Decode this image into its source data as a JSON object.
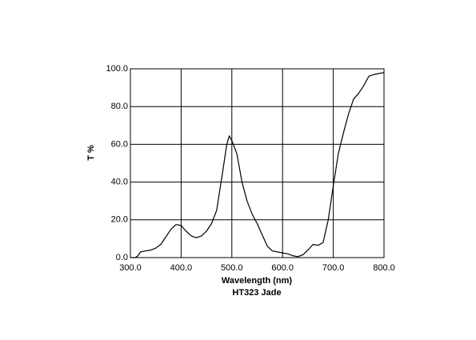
{
  "chart_data": {
    "type": "line",
    "title": "HT323 Jade",
    "xlabel": "Wavelength (nm)",
    "ylabel": "T %",
    "x": [
      300,
      310,
      315,
      320,
      330,
      340,
      350,
      360,
      370,
      380,
      390,
      400,
      410,
      420,
      430,
      440,
      450,
      460,
      470,
      480,
      490,
      495,
      500,
      510,
      520,
      530,
      540,
      550,
      560,
      570,
      580,
      590,
      600,
      610,
      620,
      630,
      640,
      650,
      660,
      670,
      680,
      690,
      700,
      710,
      720,
      730,
      740,
      750,
      760,
      770,
      780,
      790,
      800
    ],
    "values": [
      0,
      0,
      1,
      3,
      3.5,
      4,
      5,
      7,
      11,
      15,
      17.5,
      17,
      14,
      11.5,
      10.5,
      11.5,
      14,
      18,
      25,
      42,
      60,
      64.5,
      62,
      55,
      40,
      30,
      23,
      18,
      12,
      6,
      3.5,
      3,
      2.5,
      2,
      1,
      0.5,
      1.5,
      4,
      7,
      6.5,
      8,
      20,
      38,
      55,
      66,
      76,
      84,
      87,
      91,
      96,
      97,
      97.5,
      98
    ],
    "color": "#000000",
    "xlim": [
      300,
      800
    ],
    "xticks": [
      {
        "value": 300,
        "label": "300.0"
      },
      {
        "value": 400,
        "label": "400.0"
      },
      {
        "value": 500,
        "label": "500.0"
      },
      {
        "value": 600,
        "label": "600.0"
      },
      {
        "value": 700,
        "label": "700.0"
      },
      {
        "value": 800,
        "label": "800.0"
      }
    ],
    "ylim": [
      0,
      100
    ],
    "yticks": [
      {
        "value": 0,
        "label": "0.0"
      },
      {
        "value": 20,
        "label": "20.0"
      },
      {
        "value": 40,
        "label": "40.0"
      },
      {
        "value": 60,
        "label": "60.0"
      },
      {
        "value": 80,
        "label": "80.0"
      },
      {
        "value": 100,
        "label": "100.0"
      }
    ],
    "grid": true
  }
}
